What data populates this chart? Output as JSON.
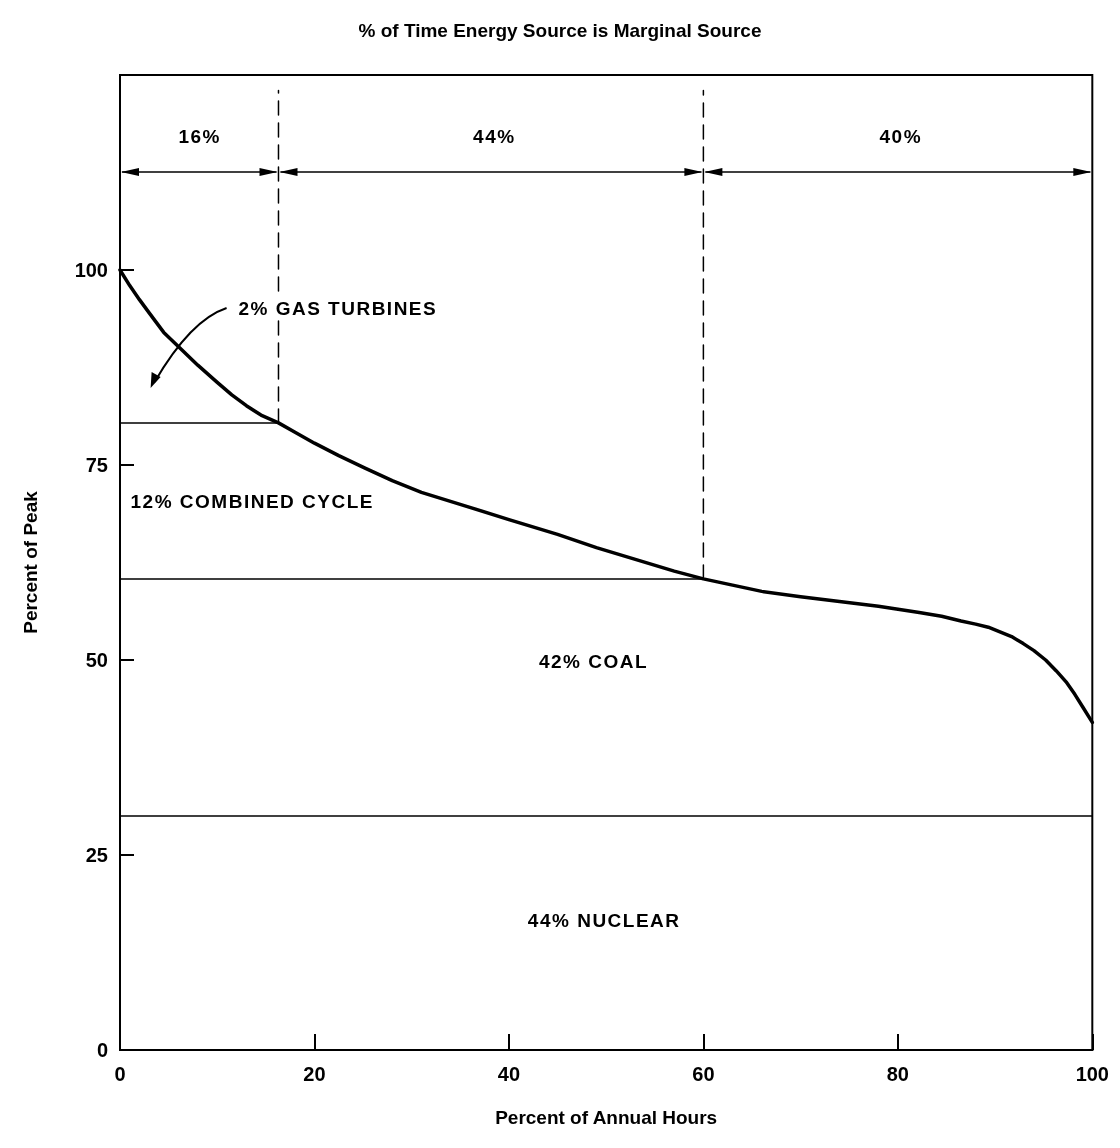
{
  "chart_data": {
    "type": "line",
    "title": "% of Time Energy Source is Marginal Source",
    "xlabel": "Percent of Annual Hours",
    "ylabel": "Percent of Peak",
    "xlim": [
      0,
      100
    ],
    "ylim": [
      0,
      125
    ],
    "xticks": [
      0,
      20,
      40,
      60,
      80,
      100
    ],
    "yticks": [
      0,
      25,
      50,
      75,
      100
    ],
    "grid": false,
    "marker": "none",
    "series": [
      {
        "color": "#000000",
        "line_style": "solid",
        "x": [
          0,
          1,
          2,
          3,
          4.5,
          6.4,
          8,
          10,
          11.5,
          13,
          14.5,
          16.3,
          18,
          20,
          22.5,
          25.2,
          28,
          31,
          35.4,
          40,
          45,
          49,
          53,
          57,
          60,
          63,
          66,
          70,
          74,
          78,
          82.2,
          84.5,
          86.5,
          88,
          89.3,
          90.5,
          91.7,
          92.9,
          94,
          95.2,
          96.3,
          97.3,
          98.2,
          99,
          100
        ],
        "values": [
          100,
          98,
          96.2,
          94.5,
          92,
          89.7,
          87.8,
          85.6,
          84,
          82.6,
          81.4,
          80.4,
          79.2,
          77.8,
          76.2,
          74.6,
          73,
          71.5,
          69.8,
          68,
          66.1,
          64.4,
          62.9,
          61.4,
          60.4,
          59.6,
          58.8,
          58.1,
          57.5,
          56.9,
          56.1,
          55.6,
          55,
          54.6,
          54.2,
          53.6,
          53,
          52.1,
          51.2,
          50,
          48.6,
          47.2,
          45.6,
          44,
          42
        ]
      },
      {
        "color": "#000000",
        "line_style": "solid",
        "x": [
          0,
          16.3
        ],
        "values": [
          80.4,
          80.4
        ]
      },
      {
        "color": "#000000",
        "line_style": "solid",
        "x": [
          0,
          60
        ],
        "values": [
          60.4,
          60.4
        ]
      },
      {
        "color": "#000000",
        "line_style": "solid",
        "x": [
          0,
          100
        ],
        "values": [
          30,
          30
        ]
      },
      {
        "color": "#000000",
        "line_style": "dashed",
        "x": [
          16.3,
          16.3
        ],
        "values": [
          80.4,
          123
        ]
      },
      {
        "color": "#000000",
        "line_style": "dashed",
        "x": [
          60,
          60
        ],
        "values": [
          60.4,
          123
        ]
      }
    ],
    "annotations": [
      "2% GAS TURBINES",
      "16%",
      "44%",
      "40%",
      "12% COMBINED CYCLE",
      "42% COAL",
      "44% NUCLEAR"
    ]
  }
}
